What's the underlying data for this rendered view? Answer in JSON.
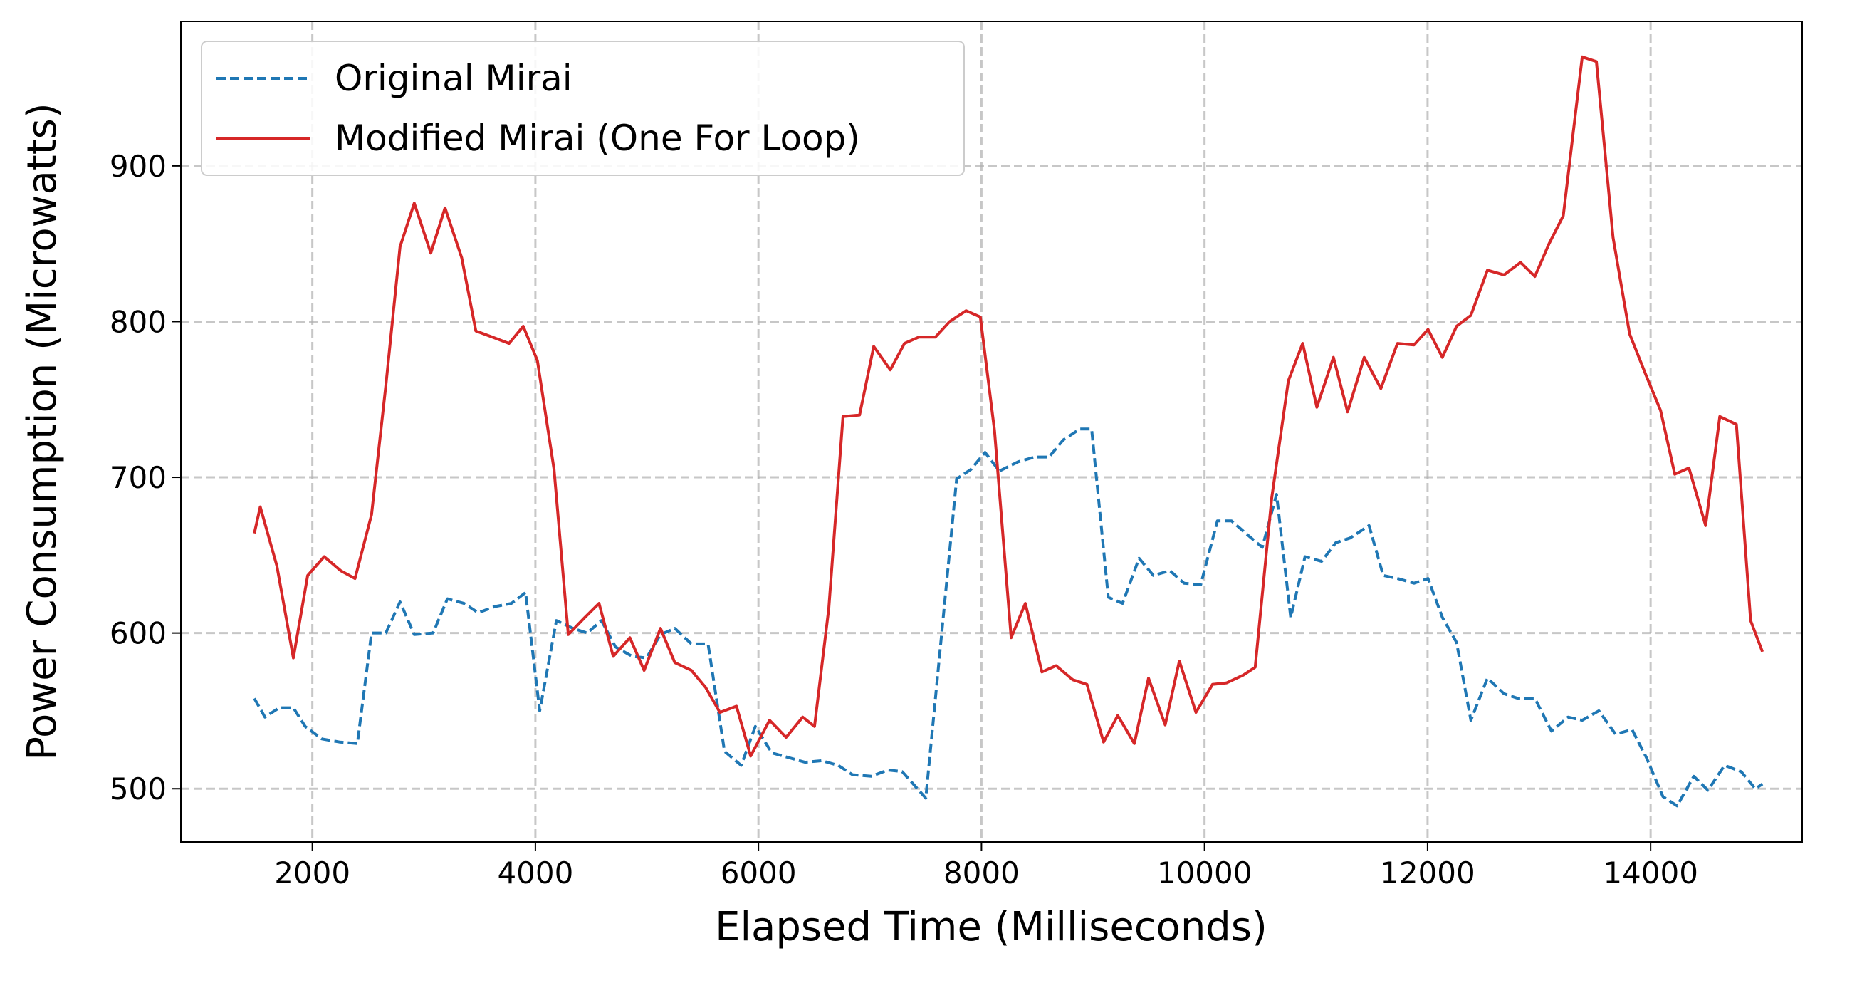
{
  "chart_data": {
    "type": "line",
    "xlabel": "Elapsed Time (Milliseconds)",
    "ylabel": "Power Consumption (Microwatts)",
    "xlim": [
      821,
      15359
    ],
    "ylim": [
      465.8,
      992.8
    ],
    "xticks": [
      2000,
      4000,
      6000,
      8000,
      10000,
      12000,
      14000
    ],
    "yticks": [
      500,
      600,
      700,
      800,
      900
    ],
    "grid": true,
    "legend": "upper left",
    "series": [
      {
        "name": "Original Mirai",
        "color": "#1f77b4",
        "linestyle": "dashed",
        "x": [
          1480,
          1575,
          1703,
          1830,
          1936,
          2085,
          2244,
          2404,
          2531,
          2659,
          2786,
          2914,
          3083,
          3211,
          3360,
          3487,
          3636,
          3785,
          3912,
          4039,
          4188,
          4337,
          4465,
          4592,
          4719,
          4868,
          4996,
          5122,
          5250,
          5399,
          5548,
          5696,
          5845,
          5972,
          6121,
          6270,
          6418,
          6567,
          6716,
          6843,
          7013,
          7161,
          7289,
          7501,
          7777,
          7905,
          8032,
          8160,
          8330,
          8478,
          8606,
          8733,
          8882,
          8988,
          9137,
          9265,
          9413,
          9541,
          9690,
          9817,
          9966,
          10115,
          10242,
          10370,
          10518,
          10646,
          10773,
          10901,
          11050,
          11177,
          11305,
          11475,
          11602,
          11730,
          11879,
          12004,
          12133,
          12260,
          12388,
          12537,
          12686,
          12813,
          12962,
          13111,
          13260,
          13387,
          13536,
          13685,
          13834,
          13962,
          14110,
          14238,
          14387,
          14514,
          14663,
          14812,
          14939,
          15003
        ],
        "values": [
          558,
          546,
          552,
          552,
          540,
          532,
          530,
          529,
          600,
          600,
          620,
          599,
          600,
          622,
          619,
          613,
          617,
          619,
          626,
          550,
          608,
          603,
          600,
          608,
          591,
          585,
          584,
          599,
          603,
          593,
          593,
          524,
          515,
          540,
          523,
          520,
          517,
          518,
          515,
          509,
          508,
          512,
          511,
          494,
          699,
          705,
          716,
          704,
          710,
          713,
          713,
          724,
          731,
          731,
          623,
          619,
          648,
          637,
          640,
          632,
          631,
          672,
          672,
          664,
          655,
          689,
          610,
          649,
          646,
          658,
          661,
          669,
          637,
          635,
          632,
          635,
          610,
          594,
          544,
          571,
          561,
          558,
          558,
          537,
          546,
          544,
          550,
          535,
          538,
          520,
          495,
          489,
          508,
          499,
          515,
          511,
          500,
          503
        ]
      },
      {
        "name": "Modified Mirai (One For Loop)",
        "color": "#d62728",
        "linestyle": "solid",
        "x": [
          1480,
          1533,
          1682,
          1830,
          1958,
          2106,
          2255,
          2383,
          2531,
          2659,
          2786,
          2914,
          3062,
          3190,
          3339,
          3466,
          3615,
          3764,
          3891,
          4018,
          4167,
          4295,
          4443,
          4571,
          4698,
          4847,
          4975,
          5122,
          5250,
          5399,
          5527,
          5654,
          5803,
          5930,
          6100,
          6248,
          6397,
          6503,
          6631,
          6758,
          6907,
          7034,
          7183,
          7310,
          7437,
          7586,
          7714,
          7862,
          7990,
          8117,
          8266,
          8393,
          8542,
          8669,
          8818,
          8946,
          9095,
          9222,
          9371,
          9498,
          9647,
          9774,
          9923,
          10072,
          10199,
          10348,
          10454,
          10603,
          10752,
          10880,
          11007,
          11156,
          11283,
          11432,
          11581,
          11730,
          11879,
          12004,
          12133,
          12260,
          12388,
          12537,
          12686,
          12834,
          12962,
          13089,
          13217,
          13387,
          13514,
          13663,
          13812,
          13962,
          14089,
          14217,
          14344,
          14493,
          14620,
          14769,
          14897,
          15003
        ],
        "values": [
          664,
          681,
          643,
          584,
          637,
          649,
          640,
          635,
          676,
          759,
          848,
          876,
          844,
          873,
          841,
          794,
          790,
          786,
          797,
          775,
          705,
          599,
          610,
          619,
          585,
          597,
          576,
          603,
          581,
          576,
          565,
          549,
          553,
          521,
          544,
          533,
          546,
          540,
          616,
          739,
          740,
          784,
          769,
          786,
          790,
          790,
          800,
          807,
          803,
          730,
          597,
          619,
          575,
          579,
          570,
          567,
          530,
          547,
          529,
          571,
          541,
          582,
          549,
          567,
          568,
          573,
          578,
          687,
          762,
          786,
          745,
          777,
          742,
          777,
          757,
          786,
          785,
          795,
          777,
          797,
          804,
          833,
          830,
          838,
          829,
          850,
          868,
          970,
          967,
          854,
          792,
          765,
          743,
          702,
          706,
          669,
          739,
          734,
          608,
          588
        ]
      }
    ]
  }
}
